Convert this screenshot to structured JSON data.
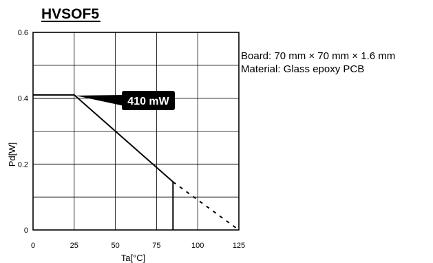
{
  "chart_data": {
    "type": "line",
    "title": "HVSOF5",
    "xlabel": "Ta[°C]",
    "ylabel": "Pd[W]",
    "xlim": [
      0,
      125
    ],
    "ylim": [
      0,
      0.6
    ],
    "x_ticks": [
      0,
      25,
      50,
      75,
      100,
      125
    ],
    "x_tick_labels": [
      "0",
      "25",
      "50",
      "75",
      "100",
      "125"
    ],
    "y_ticks": [
      0,
      0.2,
      0.4,
      0.6
    ],
    "y_tick_labels": [
      "0",
      "0.2",
      "0.4",
      "0.6"
    ],
    "grid": true,
    "series": [
      {
        "style": "solid",
        "x": [
          0,
          25,
          85,
          85
        ],
        "y": [
          0.41,
          0.41,
          0.146,
          0
        ]
      },
      {
        "style": "dashed",
        "x": [
          85,
          125
        ],
        "y": [
          0.146,
          0
        ]
      }
    ],
    "annotations": {
      "callout": {
        "text": "410 mW",
        "x": 25,
        "y": 0.41
      },
      "notes": [
        "Board: 70 mm × 70 mm × 1.6 mm",
        "Material: Glass epoxy PCB"
      ]
    }
  }
}
